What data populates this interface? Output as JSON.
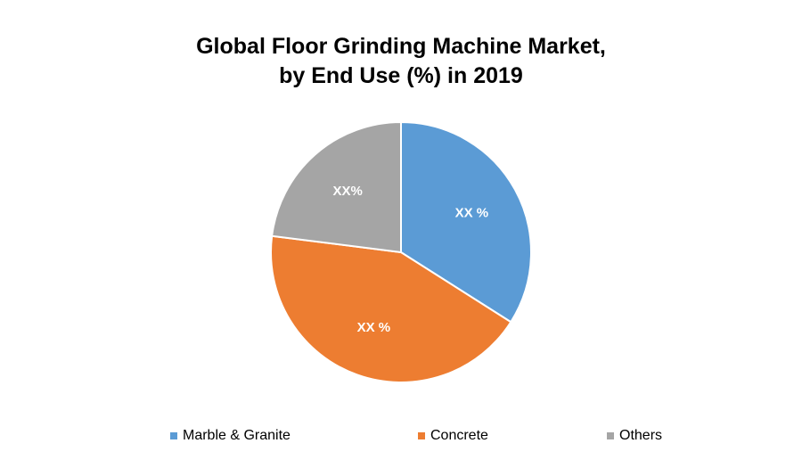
{
  "chart_data": {
    "type": "pie",
    "title_line1": "Global Floor Grinding Machine Market,",
    "title_line2": "by End Use (%) in 2019",
    "slices": [
      {
        "label": "Marble & Granite",
        "value": 34,
        "data_label": "XX %",
        "color": "#5B9BD5"
      },
      {
        "label": "Concrete",
        "value": 43,
        "data_label": "XX %",
        "color": "#ED7D31"
      },
      {
        "label": "Others",
        "value": 23,
        "data_label": "XX%",
        "color": "#A5A5A5"
      }
    ],
    "start_angle_deg": 0,
    "direction": "clockwise",
    "legend_position": "bottom"
  }
}
